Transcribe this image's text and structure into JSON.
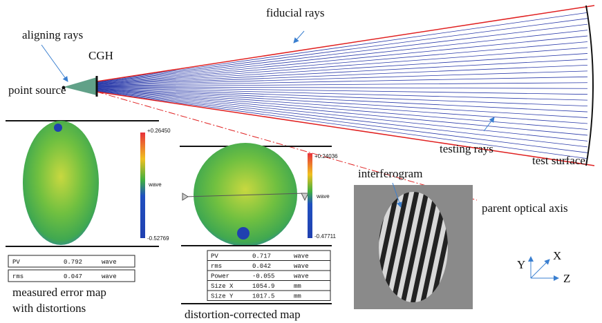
{
  "labels": {
    "fiducial": "fiducial rays",
    "aligning": "aligning rays",
    "cgh": "CGH",
    "source": "point source",
    "testing": "testing rays",
    "surface": "test surface",
    "axis": "parent optical axis"
  },
  "maps": [
    {
      "colorbar": {
        "max": "+0.26450",
        "unit": "wave",
        "min": "-0.52769"
      },
      "table": [
        [
          "PV",
          "0.792",
          "wave"
        ],
        [
          "rms",
          "0.047",
          "wave"
        ]
      ],
      "caption": [
        "measured error map",
        "with distortions"
      ]
    },
    {
      "colorbar": {
        "max": "+0.24036",
        "unit": "wave",
        "min": "-0.47711"
      },
      "table": [
        [
          "PV",
          "0.717",
          "wave"
        ],
        [
          "rms",
          "0.042",
          "wave"
        ],
        [
          "Power",
          "-0.055",
          "wave"
        ],
        [
          "Size X",
          "1054.9",
          "mm"
        ],
        [
          "Size Y",
          "1017.5",
          "mm"
        ]
      ],
      "caption": [
        "distortion-corrected map"
      ]
    }
  ],
  "interferogram": {
    "label": "interferogram"
  },
  "coordinates": {
    "y": "Y",
    "x": "X",
    "z": "Z"
  }
}
